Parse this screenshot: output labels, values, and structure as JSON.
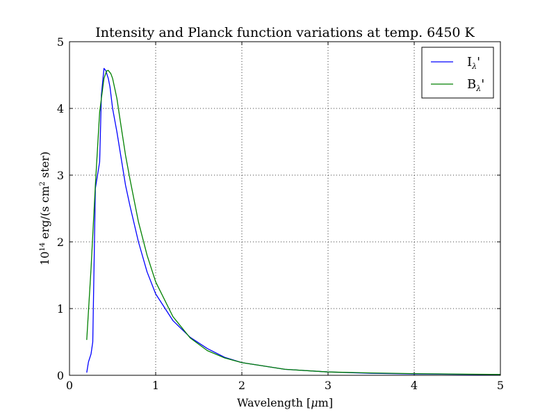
{
  "chart_data": {
    "type": "line",
    "title": "Intensity and Planck function variations at temp. 6450 K",
    "xlabel": {
      "pre": "Wavelength [",
      "mu": "μ",
      "post": "m]"
    },
    "ylabel": {
      "base": "10",
      "exp": "14",
      "mid": " erg/(s cm",
      "exp2": "2",
      "post": " ster)"
    },
    "xlim": [
      0,
      5
    ],
    "ylim": [
      0,
      5
    ],
    "xticks": [
      0,
      1,
      2,
      3,
      4,
      5
    ],
    "yticks": [
      0,
      1,
      2,
      3,
      4,
      5
    ],
    "grid": true,
    "legend_position": "top-right",
    "series": [
      {
        "name": {
          "base": "I",
          "sub": "λ",
          "tail": "'"
        },
        "color": "#0000ff",
        "x": [
          0.2,
          0.22,
          0.25,
          0.27,
          0.3,
          0.35,
          0.37,
          0.4,
          0.42,
          0.45,
          0.47,
          0.5,
          0.55,
          0.6,
          0.65,
          0.7,
          0.8,
          0.9,
          1.0,
          1.2,
          1.4,
          1.6,
          1.8,
          2.0,
          2.5,
          3.0,
          3.5,
          4.0,
          4.5,
          5.0
        ],
        "y": [
          0.04,
          0.2,
          0.32,
          0.5,
          2.8,
          3.2,
          4.2,
          4.6,
          4.57,
          4.45,
          4.32,
          4.0,
          3.65,
          3.25,
          2.85,
          2.55,
          2.0,
          1.55,
          1.22,
          0.82,
          0.57,
          0.4,
          0.27,
          0.19,
          0.09,
          0.05,
          0.03,
          0.02,
          0.015,
          0.01
        ]
      },
      {
        "name": {
          "base": "B",
          "sub": "λ",
          "tail": "'"
        },
        "color": "#008000",
        "x": [
          0.2,
          0.25,
          0.3,
          0.35,
          0.4,
          0.43,
          0.45,
          0.48,
          0.5,
          0.55,
          0.6,
          0.65,
          0.7,
          0.8,
          0.9,
          1.0,
          1.2,
          1.4,
          1.6,
          1.8,
          2.0,
          2.5,
          3.0,
          3.5,
          4.0,
          4.5,
          5.0
        ],
        "y": [
          0.53,
          1.6,
          2.85,
          3.95,
          4.45,
          4.56,
          4.57,
          4.52,
          4.45,
          4.15,
          3.72,
          3.3,
          2.95,
          2.3,
          1.8,
          1.4,
          0.88,
          0.56,
          0.37,
          0.26,
          0.19,
          0.09,
          0.05,
          0.035,
          0.025,
          0.018,
          0.013
        ]
      }
    ]
  }
}
